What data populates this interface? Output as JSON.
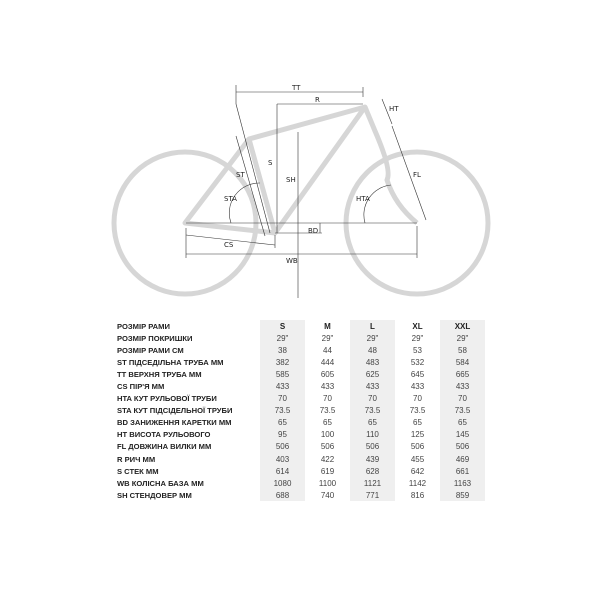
{
  "diagram": {
    "labels": {
      "tt": "TT",
      "r": "R",
      "ht": "HT",
      "s": "S",
      "sh": "SH",
      "st": "ST",
      "fl": "FL",
      "sta": "STA",
      "hta": "HTA",
      "bd": "BD",
      "cs": "CS",
      "wb": "WB"
    }
  },
  "table": {
    "header": {
      "label": "РОЗМІР РАМИ",
      "sizes": [
        "S",
        "M",
        "L",
        "XL",
        "XXL"
      ]
    },
    "rows": [
      {
        "label": "РОЗМІР ПОКРИШКИ",
        "values": [
          "29\"",
          "29\"",
          "29\"",
          "29\"",
          "29\""
        ]
      },
      {
        "label": "РОЗМІР РАМИ СМ",
        "values": [
          "38",
          "44",
          "48",
          "53",
          "58"
        ]
      },
      {
        "label": "ST ПІДСЕДІЛЬНА ТРУБА ММ",
        "values": [
          "382",
          "444",
          "483",
          "532",
          "584"
        ]
      },
      {
        "label": "TT ВЕРХНЯ ТРУБА ММ",
        "values": [
          "585",
          "605",
          "625",
          "645",
          "665"
        ]
      },
      {
        "label": "CS ПІР'Я ММ",
        "values": [
          "433",
          "433",
          "433",
          "433",
          "433"
        ]
      },
      {
        "label": "HTA КУТ РУЛЬОВОЇ ТРУБИ",
        "values": [
          "70",
          "70",
          "70",
          "70",
          "70"
        ]
      },
      {
        "label": "STA КУТ ПІДСІДЕЛЬНОЇ ТРУБИ",
        "values": [
          "73.5",
          "73.5",
          "73.5",
          "73.5",
          "73.5"
        ]
      },
      {
        "label": "BD ЗАНИЖЕННЯ КАРЕТКИ ММ",
        "values": [
          "65",
          "65",
          "65",
          "65",
          "65"
        ]
      },
      {
        "label": "HT ВИСОТА РУЛЬОВОГО",
        "values": [
          "95",
          "100",
          "110",
          "125",
          "145"
        ]
      },
      {
        "label": "FL ДОВЖИНА ВИЛКИ ММ",
        "values": [
          "506",
          "506",
          "506",
          "506",
          "506"
        ]
      },
      {
        "label": "R РИЧ ММ",
        "values": [
          "403",
          "422",
          "439",
          "455",
          "469"
        ]
      },
      {
        "label": "S СТЕК ММ",
        "values": [
          "614",
          "619",
          "628",
          "642",
          "661"
        ]
      },
      {
        "label": "WB КОЛІСНА БАЗА ММ",
        "values": [
          "1080",
          "1100",
          "1121",
          "1142",
          "1163"
        ]
      },
      {
        "label": "SH СТЕНДОВЕР ММ",
        "values": [
          "688",
          "740",
          "771",
          "816",
          "859"
        ]
      }
    ]
  },
  "colors": {
    "frame": "#d6d6d6",
    "shade": "#efefef"
  }
}
